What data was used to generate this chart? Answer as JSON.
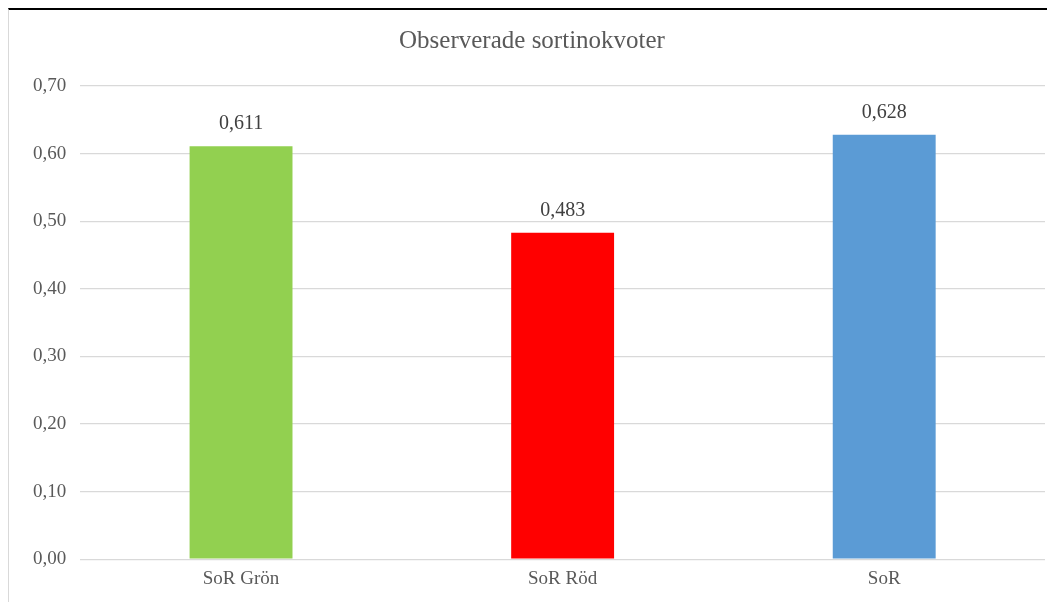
{
  "chart_data": {
    "type": "bar",
    "title": "Observerade sortinokvoter",
    "categories": [
      "SoR Grön",
      "SoR Röd",
      "SoR"
    ],
    "values": [
      0.611,
      0.483,
      0.628
    ],
    "colors": [
      "#92d050",
      "#ff0000",
      "#5b9bd5"
    ],
    "value_labels": [
      "0,611",
      "0,483",
      "0,628"
    ],
    "ylim": [
      0,
      0.7
    ],
    "yticks": [
      {
        "value": 0,
        "label": "0,00"
      },
      {
        "value": 0.1,
        "label": "0,10"
      },
      {
        "value": 0.2,
        "label": "0,20"
      },
      {
        "value": 0.3,
        "label": "0,30"
      },
      {
        "value": 0.4,
        "label": "0,40"
      },
      {
        "value": 0.5,
        "label": "0,50"
      },
      {
        "value": 0.6,
        "label": "0,60"
      },
      {
        "value": 0.7,
        "label": "0,70"
      }
    ],
    "grid": "y",
    "legend": false
  }
}
